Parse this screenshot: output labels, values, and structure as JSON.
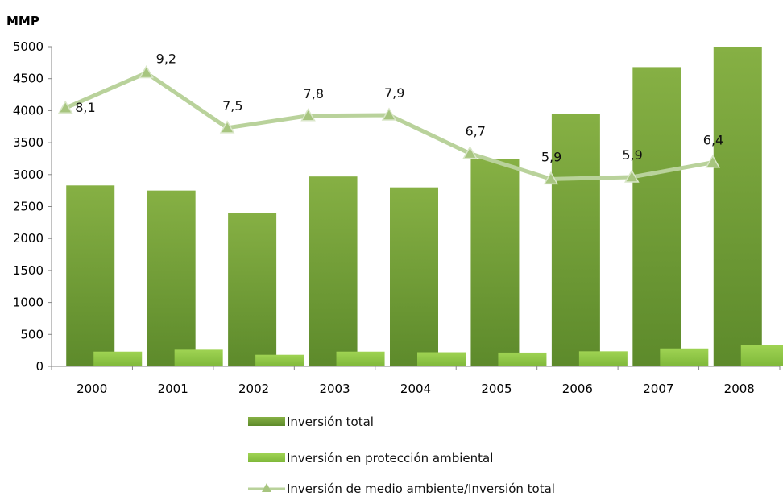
{
  "chart_data": {
    "type": "bar",
    "ylabel": "MMP",
    "ylim": [
      0,
      5000
    ],
    "yticks": [
      0,
      500,
      1000,
      1500,
      2000,
      2500,
      3000,
      3500,
      4000,
      4500,
      5000
    ],
    "categories": [
      "2000",
      "2001",
      "2002",
      "2003",
      "2004",
      "2005",
      "2006",
      "2007",
      "2008"
    ],
    "series": [
      {
        "name": "Inversión total",
        "type": "bar",
        "color": "#6e9a34",
        "values": [
          2830,
          2750,
          2400,
          2970,
          2800,
          3240,
          3950,
          4680,
          5000
        ]
      },
      {
        "name": "Inversión en protección ambiental",
        "type": "bar",
        "color": "#8fc440",
        "values": [
          230,
          260,
          180,
          230,
          220,
          215,
          235,
          280,
          330
        ]
      },
      {
        "name": "Inversión de medio ambiente/Inversión total",
        "type": "line",
        "color": "#b9d29b",
        "values": [
          4040,
          4590,
          3730,
          3920,
          3930,
          3330,
          2930,
          2960,
          3190
        ],
        "labels": [
          "8,1",
          "9,2",
          "7,5",
          "7,8",
          "7,9",
          "6,7",
          "5,9",
          "5,9",
          "6,4"
        ]
      }
    ],
    "legend_position": "bottom",
    "grid": false
  }
}
